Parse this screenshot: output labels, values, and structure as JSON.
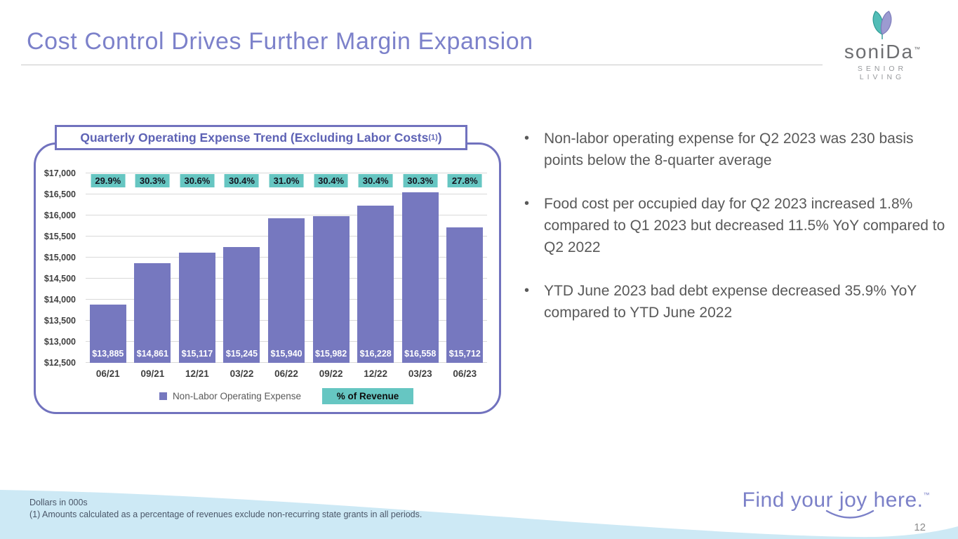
{
  "slide": {
    "title": "Cost Control Drives Further Margin Expansion",
    "page_number": "12",
    "tagline": "Find your joy here.",
    "tagline_tm": "™",
    "footnotes": [
      "Dollars in 000s",
      "(1) Amounts calculated as a percentage of revenues exclude non-recurring state grants in all periods."
    ]
  },
  "logo": {
    "brand": "soniDa",
    "tm": "™",
    "sub": "SENIOR LIVING",
    "icon": "leaf-petals-icon",
    "colors": {
      "teal_petal": "#52BDB7",
      "purple_petal": "#9C9BD1",
      "text": "#6D6E71"
    }
  },
  "chart_panel": {
    "title_prefix": "Quarterly Operating Expense Trend (Excluding Labor Costs",
    "title_sup": "(1)",
    "title_suffix": ")"
  },
  "bullets": [
    {
      "text": "Non-labor operating expense for Q2 2023 was 230 basis points below the 8-quarter average"
    },
    {
      "text": "Food cost per occupied day for Q2 2023 increased 1.8% compared to Q1 2023 but decreased 11.5% YoY compared to Q2 2022"
    },
    {
      "text": "YTD June 2023 bad debt expense decreased 35.9% YoY compared to YTD June 2022"
    }
  ],
  "chart_data": {
    "type": "bar",
    "title": "Quarterly Operating Expense Trend (Excluding Labor Costs(1))",
    "categories": [
      "06/21",
      "09/21",
      "12/21",
      "03/22",
      "06/22",
      "09/22",
      "12/22",
      "03/23",
      "06/23"
    ],
    "series": [
      {
        "name": "Non-Labor Operating Expense",
        "values": [
          13885,
          14861,
          15117,
          15245,
          15940,
          15982,
          16228,
          16558,
          15712
        ],
        "data_labels": [
          "$13,885",
          "$14,861",
          "$15,117",
          "$15,245",
          "$15,940",
          "$15,982",
          "$16,228",
          "$16,558",
          "$15,712"
        ],
        "color": "#7678BF"
      },
      {
        "name": "% of Revenue",
        "values": [
          29.9,
          30.3,
          30.6,
          30.4,
          31.0,
          30.4,
          30.4,
          30.3,
          27.8
        ],
        "data_labels": [
          "29.9%",
          "30.3%",
          "30.6%",
          "30.4%",
          "31.0%",
          "30.4%",
          "30.4%",
          "30.3%",
          "27.8%"
        ],
        "color": "#66C6C2",
        "render": "badges"
      }
    ],
    "ylim": [
      12500,
      17000
    ],
    "ytick_step": 500,
    "ytick_labels": [
      "$12,500",
      "$13,000",
      "$13,500",
      "$14,000",
      "$14,500",
      "$15,000",
      "$15,500",
      "$16,000",
      "$16,500",
      "$17,000"
    ],
    "grid": true,
    "legend_position": "bottom",
    "footnote": "Dollars in 000s"
  }
}
